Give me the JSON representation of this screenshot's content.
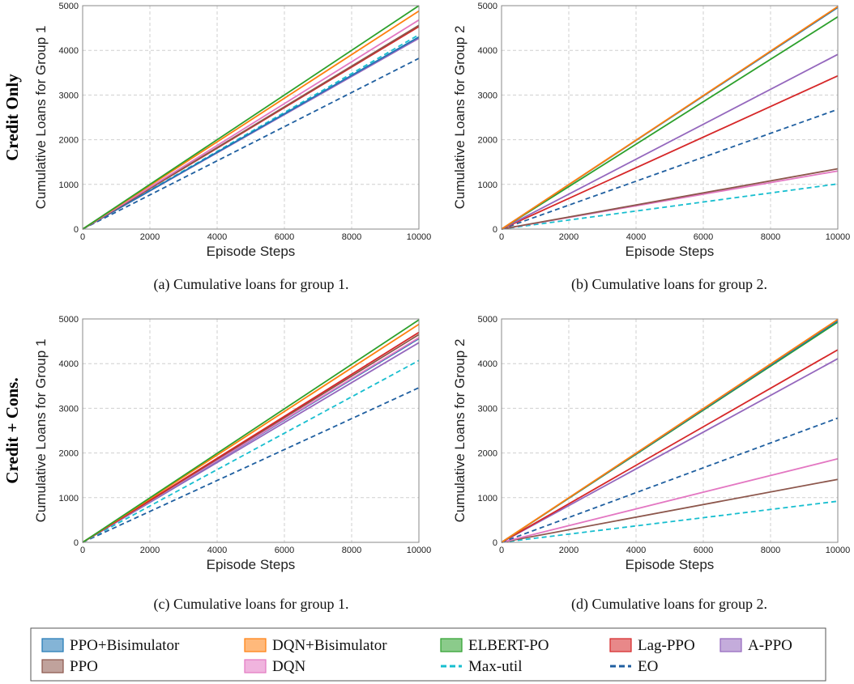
{
  "row_labels": [
    "Credit Only",
    "Credit + Cons."
  ],
  "captions": [
    "(a) Cumulative loans for group 1.",
    "(b) Cumulative loans for group 2.",
    "(c) Cumulative loans for group 1.",
    "(d) Cumulative loans for group 2."
  ],
  "legend": [
    {
      "key": "ppo_bisim",
      "label": "PPO+Bisimulator",
      "color": "#1f77b4",
      "style": "patch"
    },
    {
      "key": "dqn_bisim",
      "label": "DQN+Bisimulator",
      "color": "#ff7f0e",
      "style": "patch"
    },
    {
      "key": "elbert",
      "label": "ELBERT-PO",
      "color": "#2ca02c",
      "style": "patch"
    },
    {
      "key": "lag_ppo",
      "label": "Lag-PPO",
      "color": "#d62728",
      "style": "patch"
    },
    {
      "key": "a_ppo",
      "label": "A-PPO",
      "color": "#9467bd",
      "style": "patch"
    },
    {
      "key": "ppo",
      "label": "PPO",
      "color": "#8c564b",
      "style": "patch"
    },
    {
      "key": "dqn",
      "label": "DQN",
      "color": "#e377c2",
      "style": "patch"
    },
    {
      "key": "maxutil",
      "label": "Max-util",
      "color": "#17becf",
      "style": "dash"
    },
    {
      "key": "eo",
      "label": "EO",
      "color": "#1f5fa0",
      "style": "dash"
    }
  ],
  "chart_data": [
    {
      "type": "line",
      "xlabel": "Episode Steps",
      "ylabel": "Cumulative Loans for Group 1",
      "xlim": [
        0,
        10000
      ],
      "ylim": [
        0,
        5000
      ],
      "xticks": [
        0,
        2000,
        4000,
        6000,
        8000,
        10000
      ],
      "yticks": [
        0,
        1000,
        2000,
        3000,
        4000,
        5000
      ],
      "grid": true,
      "x": [
        0,
        10000
      ],
      "series": [
        {
          "name": "EO",
          "key": "eo",
          "values": [
            0,
            3820
          ]
        },
        {
          "name": "Max-util",
          "key": "maxutil",
          "values": [
            0,
            4350
          ]
        },
        {
          "name": "A-PPO",
          "key": "a_ppo",
          "values": [
            0,
            4270
          ]
        },
        {
          "name": "PPO+Bisimulator",
          "key": "ppo_bisim",
          "values": [
            0,
            4300
          ]
        },
        {
          "name": "Lag-PPO",
          "key": "lag_ppo",
          "values": [
            0,
            4530
          ]
        },
        {
          "name": "PPO",
          "key": "ppo",
          "values": [
            0,
            4560
          ]
        },
        {
          "name": "DQN",
          "key": "dqn",
          "values": [
            0,
            4680
          ]
        },
        {
          "name": "DQN+Bisimulator",
          "key": "dqn_bisim",
          "values": [
            0,
            4880
          ]
        },
        {
          "name": "ELBERT-PO",
          "key": "elbert",
          "values": [
            0,
            5000
          ]
        }
      ]
    },
    {
      "type": "line",
      "xlabel": "Episode Steps",
      "ylabel": "Cumulative Loans for Group 2",
      "xlim": [
        0,
        10000
      ],
      "ylim": [
        0,
        5000
      ],
      "xticks": [
        0,
        2000,
        4000,
        6000,
        8000,
        10000
      ],
      "yticks": [
        0,
        1000,
        2000,
        3000,
        4000,
        5000
      ],
      "grid": true,
      "x": [
        0,
        10000
      ],
      "series": [
        {
          "name": "Max-util",
          "key": "maxutil",
          "values": [
            0,
            1010
          ]
        },
        {
          "name": "DQN",
          "key": "dqn",
          "values": [
            0,
            1300
          ]
        },
        {
          "name": "PPO",
          "key": "ppo",
          "values": [
            0,
            1350
          ]
        },
        {
          "name": "EO",
          "key": "eo",
          "values": [
            0,
            2680
          ]
        },
        {
          "name": "Lag-PPO",
          "key": "lag_ppo",
          "values": [
            0,
            3430
          ]
        },
        {
          "name": "A-PPO",
          "key": "a_ppo",
          "values": [
            0,
            3910
          ]
        },
        {
          "name": "ELBERT-PO",
          "key": "elbert",
          "values": [
            0,
            4750
          ]
        },
        {
          "name": "PPO+Bisimulator",
          "key": "ppo_bisim",
          "values": [
            0,
            4960
          ]
        },
        {
          "name": "DQN+Bisimulator",
          "key": "dqn_bisim",
          "values": [
            0,
            4980
          ]
        }
      ]
    },
    {
      "type": "line",
      "xlabel": "Episode Steps",
      "ylabel": "Cumulative Loans for Group 1",
      "xlim": [
        0,
        10000
      ],
      "ylim": [
        0,
        5000
      ],
      "xticks": [
        0,
        2000,
        4000,
        6000,
        8000,
        10000
      ],
      "yticks": [
        0,
        1000,
        2000,
        3000,
        4000,
        5000
      ],
      "grid": true,
      "x": [
        0,
        10000
      ],
      "series": [
        {
          "name": "EO",
          "key": "eo",
          "values": [
            0,
            3460
          ]
        },
        {
          "name": "Max-util",
          "key": "maxutil",
          "values": [
            0,
            4070
          ]
        },
        {
          "name": "A-PPO",
          "key": "a_ppo",
          "values": [
            0,
            4470
          ]
        },
        {
          "name": "PPO+Bisimulator",
          "key": "ppo_bisim",
          "values": [
            0,
            4560
          ]
        },
        {
          "name": "DQN",
          "key": "dqn",
          "values": [
            0,
            4580
          ]
        },
        {
          "name": "PPO",
          "key": "ppo",
          "values": [
            0,
            4650
          ]
        },
        {
          "name": "Lag-PPO",
          "key": "lag_ppo",
          "values": [
            0,
            4700
          ]
        },
        {
          "name": "DQN+Bisimulator",
          "key": "dqn_bisim",
          "values": [
            0,
            4880
          ]
        },
        {
          "name": "ELBERT-PO",
          "key": "elbert",
          "values": [
            0,
            4980
          ]
        }
      ]
    },
    {
      "type": "line",
      "xlabel": "Episode Steps",
      "ylabel": "Cumulative Loans for Group 2",
      "xlim": [
        0,
        10000
      ],
      "ylim": [
        0,
        5000
      ],
      "xticks": [
        0,
        2000,
        4000,
        6000,
        8000,
        10000
      ],
      "yticks": [
        0,
        1000,
        2000,
        3000,
        4000,
        5000
      ],
      "grid": true,
      "x": [
        0,
        10000
      ],
      "series": [
        {
          "name": "Max-util",
          "key": "maxutil",
          "values": [
            0,
            920
          ]
        },
        {
          "name": "PPO",
          "key": "ppo",
          "values": [
            0,
            1410
          ]
        },
        {
          "name": "DQN",
          "key": "dqn",
          "values": [
            0,
            1870
          ]
        },
        {
          "name": "EO",
          "key": "eo",
          "values": [
            0,
            2780
          ]
        },
        {
          "name": "A-PPO",
          "key": "a_ppo",
          "values": [
            0,
            4110
          ]
        },
        {
          "name": "Lag-PPO",
          "key": "lag_ppo",
          "values": [
            0,
            4310
          ]
        },
        {
          "name": "ELBERT-PO",
          "key": "elbert",
          "values": [
            0,
            4930
          ]
        },
        {
          "name": "PPO+Bisimulator",
          "key": "ppo_bisim",
          "values": [
            0,
            4960
          ]
        },
        {
          "name": "DQN+Bisimulator",
          "key": "dqn_bisim",
          "values": [
            0,
            4990
          ]
        }
      ]
    }
  ]
}
